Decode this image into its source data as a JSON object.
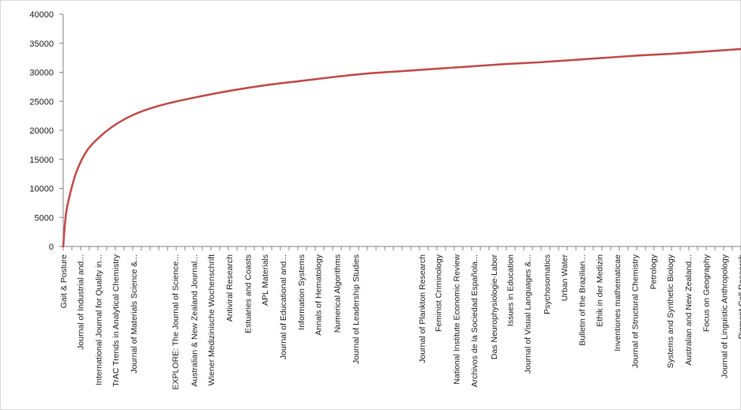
{
  "chart_data": {
    "type": "line",
    "title": "",
    "xlabel": "",
    "ylabel": "",
    "ylim": [
      0,
      40000
    ],
    "yticks": [
      0,
      5000,
      10000,
      15000,
      20000,
      25000,
      30000,
      35000,
      40000
    ],
    "grid": false,
    "legend": "none",
    "colors": {
      "line": "#c0504d",
      "axis": "#868686",
      "border": "#d9d9d9"
    },
    "categories": [
      "Gait & Posture",
      "Journal of Industrial and...",
      "International Journal for Quality in...",
      "TrAC Trends in Analytical Chemistry",
      "Journal of Materials Science &...",
      "EXPLORE: The Journal of Science...",
      "Australian & New Zealand Journal...",
      "Wiener Medizinische Wochenschrift",
      "Antiviral Research",
      "Estuaries and Coasts",
      "APL Materials",
      "Journal of Educational and...",
      "Information Systems",
      "Annals of Hematology",
      "Numerical Algorithms",
      "Journal of Leadership Studies",
      "Journal of Plankton Research",
      "Feminist Criminology",
      "National Institute Economic Review",
      "Archivos de la Sociedad Española...",
      "Das Neurophysiologie-Labor",
      "Issues in Education",
      "Journal of Visual Languages &...",
      "Psychosomatics",
      "Urban Water",
      "Bulletin of the Brazilian...",
      "Ethik in der Medizin",
      "Inventiones mathematicae",
      "Journal of Structural Chemistry",
      "Petrology",
      "Systems and Synthetic Biology",
      "Australian and New Zealand...",
      "Focus on Geography",
      "Journal of Linguistic Anthropology",
      "Pigment Cell Research"
    ],
    "x_fraction": [
      0.0,
      0.025,
      0.052,
      0.077,
      0.104,
      0.165,
      0.193,
      0.218,
      0.245,
      0.272,
      0.297,
      0.324,
      0.351,
      0.376,
      0.404,
      0.431,
      0.529,
      0.553,
      0.58,
      0.606,
      0.635,
      0.659,
      0.685,
      0.713,
      0.739,
      0.765,
      0.791,
      0.817,
      0.843,
      0.87,
      0.895,
      0.922,
      0.948,
      0.975,
      1.0
    ],
    "series": [
      {
        "values": [
          [
            0.0,
            0
          ],
          [
            0.004,
            5500
          ],
          [
            0.01,
            9000
          ],
          [
            0.02,
            13000
          ],
          [
            0.035,
            16500
          ],
          [
            0.055,
            19000
          ],
          [
            0.08,
            21200
          ],
          [
            0.11,
            23000
          ],
          [
            0.15,
            24500
          ],
          [
            0.2,
            25800
          ],
          [
            0.25,
            26900
          ],
          [
            0.3,
            27800
          ],
          [
            0.35,
            28500
          ],
          [
            0.4,
            29200
          ],
          [
            0.45,
            29800
          ],
          [
            0.5,
            30200
          ],
          [
            0.55,
            30600
          ],
          [
            0.6,
            31000
          ],
          [
            0.65,
            31400
          ],
          [
            0.7,
            31700
          ],
          [
            0.75,
            32100
          ],
          [
            0.8,
            32500
          ],
          [
            0.85,
            32900
          ],
          [
            0.9,
            33200
          ],
          [
            0.95,
            33600
          ],
          [
            1.0,
            34000
          ]
        ]
      }
    ]
  }
}
